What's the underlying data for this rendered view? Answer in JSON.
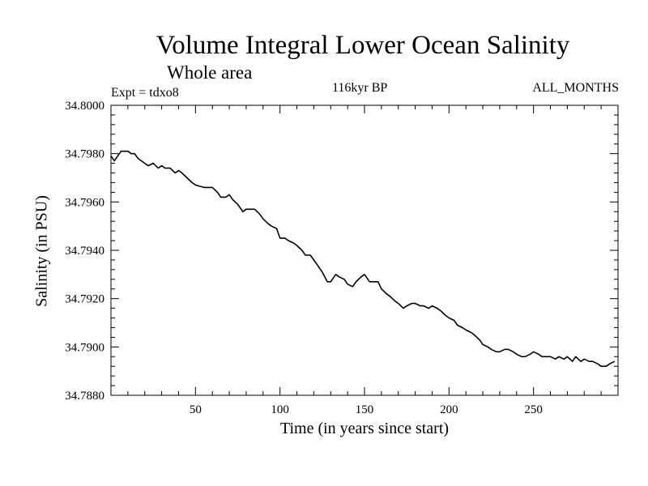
{
  "chart_data": {
    "type": "line",
    "title": "Volume Integral Lower Ocean Salinity",
    "subtitle": "Whole area",
    "annotations": {
      "left": "Expt = tdxo8",
      "center": "116kyr BP",
      "right": "ALL_MONTHS"
    },
    "xlabel": "Time (in years since start)",
    "ylabel": "Salinity (in PSU)",
    "xlim": [
      0,
      300
    ],
    "ylim": [
      34.788,
      34.8
    ],
    "x_ticks": [
      50,
      100,
      150,
      200,
      250
    ],
    "x_tick_labels": [
      "50",
      "100",
      "150",
      "200",
      "250"
    ],
    "y_ticks": [
      34.788,
      34.79,
      34.792,
      34.794,
      34.796,
      34.798,
      34.8
    ],
    "y_tick_labels": [
      "34.7880",
      "34.7900",
      "34.7920",
      "34.7940",
      "34.7960",
      "34.7980",
      "34.8000"
    ],
    "grid": false,
    "series": [
      {
        "x": [
          0,
          2,
          4,
          6,
          8,
          10,
          12,
          14,
          16,
          18,
          20,
          22,
          25,
          28,
          30,
          32,
          35,
          38,
          40,
          42,
          45,
          48,
          50,
          55,
          60,
          63,
          65,
          68,
          70,
          72,
          75,
          78,
          80,
          83,
          85,
          88,
          90,
          93,
          95,
          98,
          100,
          103,
          105,
          108,
          110,
          113,
          115,
          118,
          120,
          123,
          125,
          128,
          130,
          133,
          135,
          138,
          140,
          143,
          145,
          148,
          150,
          153,
          155,
          158,
          160,
          163,
          165,
          168,
          170,
          173,
          175,
          178,
          180,
          183,
          185,
          188,
          190,
          193,
          195,
          198,
          200,
          203,
          205,
          208,
          210,
          213,
          215,
          218,
          220,
          223,
          225,
          228,
          230,
          233,
          235,
          238,
          240,
          243,
          245,
          248,
          250,
          253,
          255,
          258,
          260,
          263,
          265,
          268,
          270,
          273,
          275,
          278,
          280,
          283,
          285,
          288,
          290,
          293,
          295,
          298
        ],
        "y": [
          34.7979,
          34.7977,
          34.7979,
          34.7981,
          34.7981,
          34.7981,
          34.798,
          34.798,
          34.7978,
          34.7977,
          34.7976,
          34.7975,
          34.7976,
          34.7974,
          34.7975,
          34.7974,
          34.7974,
          34.7972,
          34.7973,
          34.7972,
          34.797,
          34.7968,
          34.7967,
          34.7966,
          34.7966,
          34.7964,
          34.7962,
          34.7962,
          34.7963,
          34.7961,
          34.7959,
          34.7956,
          34.7957,
          34.7957,
          34.7957,
          34.7955,
          34.7953,
          34.7951,
          34.795,
          34.7949,
          34.7945,
          34.7945,
          34.7944,
          34.7943,
          34.7942,
          34.794,
          34.7938,
          34.7938,
          34.7936,
          34.7933,
          34.7931,
          34.7927,
          34.7927,
          34.793,
          34.7929,
          34.7928,
          34.7926,
          34.7925,
          34.7927,
          34.7929,
          34.793,
          34.7927,
          34.7927,
          34.7927,
          34.7924,
          34.7922,
          34.7921,
          34.7919,
          34.7918,
          34.7916,
          34.7917,
          34.7918,
          34.7918,
          34.7917,
          34.7917,
          34.7916,
          34.7917,
          34.7916,
          34.7915,
          34.7913,
          34.7912,
          34.7911,
          34.7909,
          34.7908,
          34.7907,
          34.7906,
          34.7905,
          34.7903,
          34.7901,
          34.79,
          34.7899,
          34.7898,
          34.7898,
          34.7899,
          34.7899,
          34.7898,
          34.7897,
          34.7896,
          34.7896,
          34.7897,
          34.7898,
          34.7897,
          34.7896,
          34.7896,
          34.7896,
          34.7895,
          34.7896,
          34.7895,
          34.7896,
          34.7894,
          34.7896,
          34.7894,
          34.7895,
          34.7894,
          34.7894,
          34.7893,
          34.7892,
          34.7892,
          34.7893,
          34.7894
        ]
      }
    ]
  }
}
